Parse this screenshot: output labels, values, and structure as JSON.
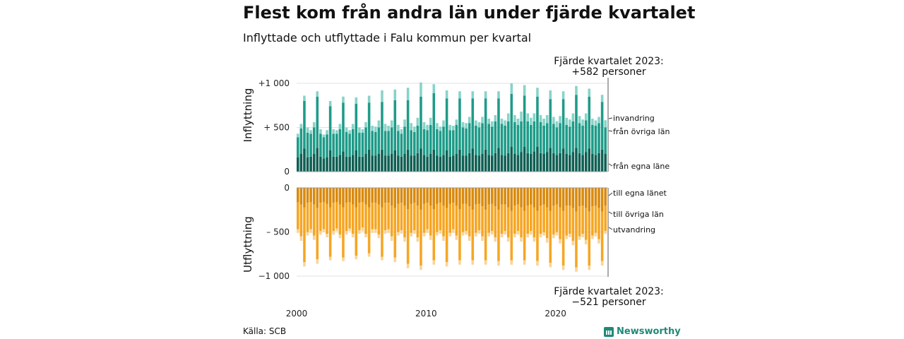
{
  "title": "Flest kom från andra län under fjärde kvartalet",
  "subtitle": "Inflyttade och utflyttade i Falu kommun per kvartal",
  "source": "Källa: SCB",
  "brand": "Newsworthy",
  "colors": {
    "in_own": "#0f5f53",
    "in_other": "#1e9b88",
    "in_immigration": "#88d3c8",
    "out_own": "#d98a0e",
    "out_other": "#f6a623",
    "out_emigration": "#f9d49a"
  },
  "chart_data": [
    {
      "type": "bar",
      "stacked": true,
      "ylabel": "Inflyttning",
      "yticks": [
        "+1 000",
        "+ 500",
        "0"
      ],
      "ylim": [
        0,
        1000
      ],
      "annotation": [
        "Fjärde kvartalet 2023:",
        "+582 personer"
      ],
      "x_start_year": 2000,
      "x_end_year": 2023,
      "xticks": [
        "2000",
        "2010",
        "2020"
      ],
      "series": [
        {
          "name": "från egna läne",
          "values": [
            160,
            200,
            260,
            160,
            170,
            200,
            270,
            170,
            150,
            160,
            240,
            170,
            170,
            190,
            230,
            170,
            170,
            190,
            240,
            170,
            170,
            200,
            250,
            180,
            180,
            200,
            250,
            180,
            180,
            200,
            240,
            180,
            170,
            200,
            250,
            180,
            180,
            210,
            260,
            190,
            170,
            200,
            250,
            180,
            170,
            190,
            240,
            170,
            180,
            200,
            250,
            180,
            180,
            210,
            260,
            190,
            180,
            200,
            250,
            190,
            180,
            210,
            270,
            190,
            180,
            210,
            280,
            200,
            190,
            220,
            280,
            210,
            200,
            230,
            280,
            210,
            200,
            220,
            270,
            210,
            190,
            210,
            260,
            200,
            190,
            220,
            270,
            210,
            190,
            220,
            260,
            200,
            190,
            210,
            250,
            200
          ]
        },
        {
          "name": "från övriga län",
          "values": [
            230,
            290,
            540,
            280,
            260,
            300,
            580,
            260,
            240,
            260,
            500,
            260,
            260,
            290,
            550,
            280,
            260,
            290,
            530,
            270,
            270,
            300,
            530,
            280,
            270,
            300,
            540,
            280,
            280,
            300,
            570,
            280,
            260,
            310,
            560,
            290,
            270,
            310,
            590,
            290,
            300,
            330,
            640,
            300,
            290,
            320,
            590,
            300,
            290,
            330,
            580,
            320,
            310,
            340,
            570,
            330,
            320,
            350,
            580,
            350,
            330,
            360,
            560,
            350,
            340,
            360,
            600,
            360,
            340,
            350,
            580,
            360,
            330,
            340,
            570,
            350,
            320,
            330,
            550,
            330,
            310,
            340,
            560,
            330,
            320,
            350,
            600,
            340,
            330,
            360,
            590,
            330,
            330,
            340,
            540,
            300
          ]
        },
        {
          "name": "invandring",
          "values": [
            40,
            50,
            60,
            60,
            40,
            60,
            60,
            50,
            30,
            50,
            60,
            50,
            40,
            60,
            70,
            50,
            40,
            60,
            70,
            60,
            40,
            60,
            80,
            60,
            60,
            80,
            130,
            80,
            60,
            80,
            120,
            70,
            50,
            80,
            140,
            80,
            60,
            90,
            160,
            80,
            60,
            80,
            100,
            70,
            50,
            70,
            90,
            60,
            50,
            60,
            80,
            60,
            60,
            70,
            80,
            60,
            60,
            70,
            80,
            60,
            60,
            70,
            80,
            60,
            60,
            90,
            120,
            80,
            70,
            110,
            120,
            90,
            80,
            90,
            100,
            80,
            80,
            90,
            100,
            80,
            70,
            80,
            90,
            80,
            80,
            90,
            100,
            80,
            70,
            80,
            90,
            70,
            60,
            70,
            80,
            82
          ]
        }
      ]
    },
    {
      "type": "bar",
      "stacked": true,
      "ylabel": "Utflyttning",
      "yticks": [
        "0",
        "– 500",
        "−1 000"
      ],
      "ylim": [
        -1000,
        0
      ],
      "annotation": [
        "Fjärde kvartalet 2023:",
        "−521 personer"
      ],
      "series": [
        {
          "name": "till egna länet",
          "values": [
            -160,
            -190,
            -220,
            -170,
            -160,
            -190,
            -230,
            -170,
            -160,
            -180,
            -220,
            -170,
            -160,
            -190,
            -220,
            -170,
            -160,
            -190,
            -220,
            -170,
            -160,
            -190,
            -220,
            -170,
            -170,
            -190,
            -220,
            -170,
            -170,
            -200,
            -230,
            -180,
            -170,
            -200,
            -240,
            -180,
            -170,
            -200,
            -250,
            -180,
            -170,
            -200,
            -240,
            -180,
            -170,
            -200,
            -230,
            -180,
            -170,
            -200,
            -240,
            -180,
            -180,
            -210,
            -250,
            -190,
            -180,
            -210,
            -250,
            -190,
            -180,
            -210,
            -250,
            -190,
            -190,
            -220,
            -260,
            -200,
            -190,
            -220,
            -260,
            -200,
            -190,
            -220,
            -260,
            -200,
            -190,
            -220,
            -260,
            -200,
            -190,
            -220,
            -260,
            -200,
            -200,
            -230,
            -270,
            -210,
            -200,
            -230,
            -270,
            -210,
            -200,
            -230,
            -270,
            -200
          ]
        },
        {
          "name": "till övriga län",
          "values": [
            -310,
            -360,
            -620,
            -330,
            -310,
            -350,
            -580,
            -320,
            -310,
            -340,
            -560,
            -320,
            -300,
            -340,
            -570,
            -320,
            -300,
            -330,
            -550,
            -310,
            -290,
            -330,
            -520,
            -300,
            -300,
            -340,
            -560,
            -310,
            -300,
            -350,
            -560,
            -320,
            -310,
            -360,
            -620,
            -330,
            -310,
            -360,
            -630,
            -330,
            -300,
            -340,
            -580,
            -320,
            -310,
            -350,
            -610,
            -330,
            -300,
            -340,
            -580,
            -320,
            -310,
            -340,
            -570,
            -320,
            -300,
            -340,
            -570,
            -320,
            -310,
            -350,
            -580,
            -330,
            -300,
            -340,
            -560,
            -320,
            -300,
            -340,
            -560,
            -320,
            -300,
            -340,
            -570,
            -320,
            -310,
            -350,
            -590,
            -330,
            -310,
            -360,
            -620,
            -340,
            -320,
            -370,
            -630,
            -340,
            -320,
            -360,
            -610,
            -330,
            -310,
            -350,
            -560,
            -290
          ]
        },
        {
          "name": "utvandring",
          "values": [
            -40,
            -50,
            -50,
            -40,
            -40,
            -50,
            -50,
            -40,
            -30,
            -40,
            -40,
            -40,
            -30,
            -40,
            -40,
            -40,
            -30,
            -40,
            -40,
            -40,
            -40,
            -40,
            -40,
            -40,
            -40,
            -40,
            -40,
            -40,
            -40,
            -50,
            -50,
            -40,
            -40,
            -50,
            -50,
            -40,
            -40,
            -50,
            -50,
            -40,
            -40,
            -50,
            -50,
            -40,
            -40,
            -50,
            -50,
            -40,
            -40,
            -50,
            -50,
            -40,
            -40,
            -50,
            -50,
            -40,
            -40,
            -50,
            -50,
            -40,
            -40,
            -50,
            -50,
            -40,
            -40,
            -50,
            -50,
            -40,
            -40,
            -50,
            -50,
            -40,
            -40,
            -50,
            -50,
            -40,
            -40,
            -50,
            -50,
            -40,
            -40,
            -50,
            -50,
            -40,
            -40,
            -50,
            -50,
            -40,
            -40,
            -50,
            -50,
            -40,
            -40,
            -50,
            -50,
            -32
          ]
        }
      ]
    }
  ]
}
